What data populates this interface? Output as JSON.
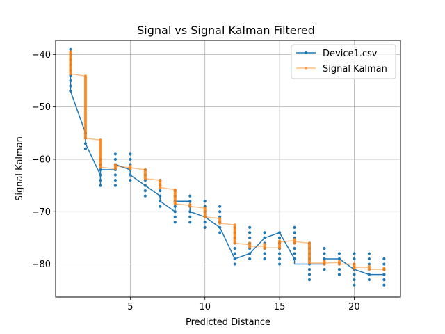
{
  "chart_data": {
    "type": "line",
    "title": "Signal vs Signal Kalman Filtered",
    "xlabel": "Predicted Distance",
    "ylabel": "Signal Kalman",
    "xlim": [
      0.0,
      23.1
    ],
    "ylim": [
      -86.3,
      -37.3
    ],
    "xticks": [
      5,
      10,
      15,
      20
    ],
    "xtick_labels": [
      "5",
      "10",
      "15",
      "20"
    ],
    "yticks": [
      -40,
      -50,
      -60,
      -70,
      -80
    ],
    "ytick_labels": [
      "−40",
      "−50",
      "−60",
      "−70",
      "−80"
    ],
    "grid": true,
    "legend_position": "top-right",
    "colors": {
      "series1": "#1f77b4",
      "series2": "#ff7f0e"
    },
    "series": [
      {
        "name": "Device1.csv",
        "line": [
          [
            1,
            -39
          ],
          [
            1,
            -47
          ],
          [
            2,
            -55
          ],
          [
            2,
            -57
          ],
          [
            3,
            -63
          ],
          [
            3,
            -65
          ],
          [
            3,
            -62
          ],
          [
            4,
            -62
          ],
          [
            4,
            -61
          ],
          [
            5,
            -62
          ],
          [
            5,
            -63
          ],
          [
            6,
            -65
          ],
          [
            7,
            -67
          ],
          [
            7,
            -68
          ],
          [
            8,
            -70
          ],
          [
            8,
            -68
          ],
          [
            9,
            -68
          ],
          [
            9,
            -70
          ],
          [
            10,
            -71
          ],
          [
            11,
            -73
          ],
          [
            12,
            -79
          ],
          [
            13,
            -78
          ],
          [
            14,
            -75
          ],
          [
            15,
            -74
          ],
          [
            16,
            -79
          ],
          [
            16,
            -80
          ],
          [
            17,
            -80
          ],
          [
            18,
            -80
          ],
          [
            18,
            -79
          ],
          [
            19,
            -79
          ],
          [
            20,
            -81
          ],
          [
            21,
            -82
          ],
          [
            22,
            -82
          ]
        ],
        "points": [
          [
            1,
            -39
          ],
          [
            1,
            -40
          ],
          [
            1,
            -41
          ],
          [
            1,
            -42
          ],
          [
            1,
            -43
          ],
          [
            1,
            -44
          ],
          [
            1,
            -45
          ],
          [
            1,
            -46
          ],
          [
            1,
            -47
          ],
          [
            2,
            -55
          ],
          [
            2,
            -56
          ],
          [
            2,
            -57
          ],
          [
            2,
            -58
          ],
          [
            3,
            -60
          ],
          [
            3,
            -61
          ],
          [
            3,
            -62
          ],
          [
            3,
            -63
          ],
          [
            3,
            -64
          ],
          [
            3,
            -65
          ],
          [
            4,
            -59
          ],
          [
            4,
            -60
          ],
          [
            4,
            -61
          ],
          [
            4,
            -62
          ],
          [
            4,
            -63
          ],
          [
            4,
            -64
          ],
          [
            4,
            -65
          ],
          [
            5,
            -59
          ],
          [
            5,
            -60
          ],
          [
            5,
            -61
          ],
          [
            5,
            -62
          ],
          [
            5,
            -63
          ],
          [
            5,
            -64
          ],
          [
            6,
            -62
          ],
          [
            6,
            -63
          ],
          [
            6,
            -64
          ],
          [
            6,
            -65
          ],
          [
            6,
            -66
          ],
          [
            6,
            -67
          ],
          [
            7,
            -64
          ],
          [
            7,
            -65
          ],
          [
            7,
            -66
          ],
          [
            7,
            -67
          ],
          [
            7,
            -68
          ],
          [
            7,
            -69
          ],
          [
            8,
            -66
          ],
          [
            8,
            -67
          ],
          [
            8,
            -68
          ],
          [
            8,
            -69
          ],
          [
            8,
            -70
          ],
          [
            8,
            -71
          ],
          [
            8,
            -72
          ],
          [
            9,
            -67
          ],
          [
            9,
            -68
          ],
          [
            9,
            -69
          ],
          [
            9,
            -70
          ],
          [
            9,
            -71
          ],
          [
            9,
            -72
          ],
          [
            10,
            -68
          ],
          [
            10,
            -69
          ],
          [
            10,
            -70
          ],
          [
            10,
            -71
          ],
          [
            10,
            -72
          ],
          [
            10,
            -73
          ],
          [
            11,
            -69
          ],
          [
            11,
            -70
          ],
          [
            11,
            -71
          ],
          [
            11,
            -72
          ],
          [
            11,
            -73
          ],
          [
            11,
            -74
          ],
          [
            12,
            -73
          ],
          [
            12,
            -74
          ],
          [
            12,
            -75
          ],
          [
            12,
            -76
          ],
          [
            12,
            -77
          ],
          [
            12,
            -78
          ],
          [
            12,
            -79
          ],
          [
            12,
            -80
          ],
          [
            13,
            -73
          ],
          [
            13,
            -74
          ],
          [
            13,
            -75
          ],
          [
            13,
            -76
          ],
          [
            13,
            -77
          ],
          [
            13,
            -78
          ],
          [
            13,
            -79
          ],
          [
            14,
            -74
          ],
          [
            14,
            -75
          ],
          [
            14,
            -76
          ],
          [
            14,
            -77
          ],
          [
            14,
            -78
          ],
          [
            14,
            -79
          ],
          [
            15,
            -74
          ],
          [
            15,
            -75
          ],
          [
            15,
            -76
          ],
          [
            15,
            -77
          ],
          [
            15,
            -78
          ],
          [
            15,
            -79
          ],
          [
            15,
            -80
          ],
          [
            16,
            -73
          ],
          [
            16,
            -74
          ],
          [
            16,
            -75
          ],
          [
            16,
            -76
          ],
          [
            16,
            -77
          ],
          [
            16,
            -78
          ],
          [
            16,
            -79
          ],
          [
            17,
            -76
          ],
          [
            17,
            -77
          ],
          [
            17,
            -78
          ],
          [
            17,
            -79
          ],
          [
            17,
            -80
          ],
          [
            17,
            -81
          ],
          [
            17,
            -82
          ],
          [
            17,
            -83
          ],
          [
            18,
            -77
          ],
          [
            18,
            -78
          ],
          [
            18,
            -79
          ],
          [
            18,
            -80
          ],
          [
            18,
            -81
          ],
          [
            19,
            -78
          ],
          [
            19,
            -79
          ],
          [
            19,
            -80
          ],
          [
            19,
            -81
          ],
          [
            19,
            -82
          ],
          [
            20,
            -78
          ],
          [
            20,
            -79
          ],
          [
            20,
            -80
          ],
          [
            20,
            -81
          ],
          [
            20,
            -82
          ],
          [
            20,
            -83
          ],
          [
            20,
            -84
          ],
          [
            21,
            -78
          ],
          [
            21,
            -79
          ],
          [
            21,
            -80
          ],
          [
            21,
            -81
          ],
          [
            21,
            -82
          ],
          [
            21,
            -83
          ],
          [
            22,
            -79
          ],
          [
            22,
            -80
          ],
          [
            22,
            -81
          ],
          [
            22,
            -82
          ],
          [
            22,
            -83
          ],
          [
            22,
            -84
          ]
        ]
      },
      {
        "name": "Signal Kalman",
        "line": [
          [
            1,
            -39.5
          ],
          [
            1,
            -43.7
          ],
          [
            2,
            -44.1
          ],
          [
            2,
            -56.0
          ],
          [
            3,
            -56.3
          ],
          [
            3,
            -61.5
          ],
          [
            4,
            -61.8
          ],
          [
            4,
            -61.3
          ],
          [
            5,
            -61.6
          ],
          [
            5,
            -61.6
          ],
          [
            6,
            -62.0
          ],
          [
            6,
            -63.7
          ],
          [
            7,
            -64.0
          ],
          [
            7,
            -65.4
          ],
          [
            8,
            -65.8
          ],
          [
            8,
            -68.5
          ],
          [
            9,
            -68.8
          ],
          [
            9,
            -69.0
          ],
          [
            10,
            -69.3
          ],
          [
            10,
            -71.0
          ],
          [
            11,
            -71.3
          ],
          [
            11,
            -72.2
          ],
          [
            12,
            -72.5
          ],
          [
            12,
            -76.0
          ],
          [
            13,
            -76.3
          ],
          [
            13,
            -76.6
          ],
          [
            14,
            -76.6
          ],
          [
            14,
            -76.9
          ],
          [
            15,
            -76.9
          ],
          [
            15,
            -75.8
          ],
          [
            16,
            -75.5
          ],
          [
            16,
            -75.7
          ],
          [
            17,
            -76.0
          ],
          [
            17,
            -79.8
          ],
          [
            18,
            -79.8
          ],
          [
            18,
            -79.8
          ],
          [
            19,
            -79.7
          ],
          [
            19,
            -80.0
          ],
          [
            20,
            -80.0
          ],
          [
            20,
            -80.6
          ],
          [
            21,
            -80.6
          ],
          [
            21,
            -81.0
          ],
          [
            22,
            -81.0
          ]
        ],
        "clusters": [
          {
            "x": 1,
            "from": -39.5,
            "to": -43.7
          },
          {
            "x": 2,
            "from": -44.1,
            "to": -56.0
          },
          {
            "x": 3,
            "from": -56.3,
            "to": -61.5
          },
          {
            "x": 4,
            "from": -61.0,
            "to": -61.8
          },
          {
            "x": 5,
            "from": -61.3,
            "to": -61.8
          },
          {
            "x": 6,
            "from": -62.0,
            "to": -63.7
          },
          {
            "x": 7,
            "from": -64.0,
            "to": -65.4
          },
          {
            "x": 8,
            "from": -65.8,
            "to": -68.5
          },
          {
            "x": 9,
            "from": -68.6,
            "to": -69.0
          },
          {
            "x": 10,
            "from": -69.3,
            "to": -71.0
          },
          {
            "x": 11,
            "from": -71.3,
            "to": -72.2
          },
          {
            "x": 12,
            "from": -72.5,
            "to": -76.0
          },
          {
            "x": 13,
            "from": -76.0,
            "to": -76.8
          },
          {
            "x": 14,
            "from": -76.2,
            "to": -77.0
          },
          {
            "x": 15,
            "from": -75.6,
            "to": -76.9
          },
          {
            "x": 16,
            "from": -75.3,
            "to": -76.0
          },
          {
            "x": 17,
            "from": -76.0,
            "to": -79.8
          },
          {
            "x": 18,
            "from": -79.4,
            "to": -80.0
          },
          {
            "x": 19,
            "from": -79.5,
            "to": -80.0
          },
          {
            "x": 20,
            "from": -80.0,
            "to": -80.8
          },
          {
            "x": 21,
            "from": -80.4,
            "to": -81.0
          },
          {
            "x": 22,
            "from": -80.8,
            "to": -81.1
          }
        ]
      }
    ]
  }
}
